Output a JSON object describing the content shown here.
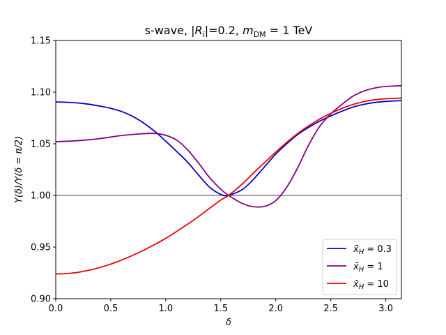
{
  "chart_data": {
    "type": "line",
    "title": "s-wave, |R_i|=0.2,  m_DM = 1 TeV",
    "title_parts": {
      "prefix": "s-wave, |",
      "r": "R",
      "r_sub": "i",
      "mid": "|=0.2,  ",
      "m": "m",
      "m_sub": "DM",
      "suffix": " = 1 TeV"
    },
    "xlabel": "δ",
    "ylabel": "Y(δ)/Y(δ = π/2)",
    "xlim": [
      0,
      3.1416
    ],
    "ylim": [
      0.9,
      1.15
    ],
    "xticks": [
      0.0,
      0.5,
      1.0,
      1.5,
      2.0,
      2.5,
      3.0
    ],
    "xtick_labels": [
      "0.0",
      "0.5",
      "1.0",
      "1.5",
      "2.0",
      "2.5",
      "3.0"
    ],
    "yticks": [
      0.9,
      0.95,
      1.0,
      1.05,
      1.1,
      1.15
    ],
    "ytick_labels": [
      "0.90",
      "0.95",
      "1.00",
      "1.05",
      "1.10",
      "1.15"
    ],
    "grid": false,
    "legend_position": "bottom-right",
    "reference_line": {
      "y": 1.0,
      "color": "#808080"
    },
    "series": [
      {
        "name": "x̄_H = 0.3",
        "label_parts": {
          "base": "x̄",
          "sub": "H",
          "value": " = 0.3"
        },
        "color": "#0000cc",
        "x": [
          0.0,
          0.1,
          0.2,
          0.3,
          0.4,
          0.5,
          0.6,
          0.7,
          0.8,
          0.9,
          1.0,
          1.1,
          1.2,
          1.3,
          1.4,
          1.5,
          1.571,
          1.7,
          1.8,
          1.9,
          2.0,
          2.1,
          2.2,
          2.3,
          2.4,
          2.5,
          2.6,
          2.7,
          2.8,
          2.9,
          3.0,
          3.1416
        ],
        "y": [
          1.0905,
          1.0902,
          1.0895,
          1.0883,
          1.0865,
          1.0843,
          1.0812,
          1.0765,
          1.07,
          1.062,
          1.0525,
          1.0425,
          1.032,
          1.0195,
          1.0078,
          1.001,
          1.0,
          1.006,
          1.016,
          1.028,
          1.04,
          1.05,
          1.059,
          1.066,
          1.072,
          1.077,
          1.0815,
          1.0855,
          1.0882,
          1.09,
          1.091,
          1.0918
        ]
      },
      {
        "name": "x̄_H = 1",
        "label_parts": {
          "base": "x̄",
          "sub": "H",
          "value": " = 1"
        },
        "color": "#800080",
        "x": [
          0.0,
          0.2,
          0.4,
          0.6,
          0.8,
          0.9,
          1.0,
          1.1,
          1.2,
          1.3,
          1.4,
          1.5,
          1.571,
          1.7,
          1.8,
          1.9,
          2.0,
          2.1,
          2.2,
          2.3,
          2.4,
          2.5,
          2.6,
          2.7,
          2.8,
          2.9,
          3.0,
          3.1416
        ],
        "y": [
          1.052,
          1.053,
          1.055,
          1.058,
          1.0598,
          1.06,
          1.0582,
          1.0535,
          1.044,
          1.031,
          1.017,
          1.006,
          1.0,
          0.992,
          0.989,
          0.9895,
          0.995,
          1.008,
          1.027,
          1.049,
          1.067,
          1.079,
          1.088,
          1.096,
          1.101,
          1.104,
          1.1055,
          1.1062
        ]
      },
      {
        "name": "x̄_H = 10",
        "label_parts": {
          "base": "x̄",
          "sub": "H",
          "value": " = 10"
        },
        "color": "#ee0000",
        "x": [
          0.0,
          0.1,
          0.2,
          0.3,
          0.4,
          0.5,
          0.6,
          0.7,
          0.8,
          0.9,
          1.0,
          1.1,
          1.2,
          1.3,
          1.4,
          1.5,
          1.571,
          1.7,
          1.8,
          1.9,
          2.0,
          2.1,
          2.2,
          2.3,
          2.4,
          2.5,
          2.6,
          2.7,
          2.8,
          2.9,
          3.0,
          3.1416
        ],
        "y": [
          0.924,
          0.9243,
          0.9255,
          0.9275,
          0.9302,
          0.9335,
          0.9375,
          0.942,
          0.947,
          0.9525,
          0.9585,
          0.9652,
          0.9722,
          0.9797,
          0.9877,
          0.9955,
          1.0,
          1.0115,
          1.022,
          1.032,
          1.042,
          1.0515,
          1.06,
          1.0675,
          1.074,
          1.0795,
          1.0842,
          1.088,
          1.0908,
          1.0926,
          1.0936,
          1.0942
        ]
      }
    ]
  }
}
